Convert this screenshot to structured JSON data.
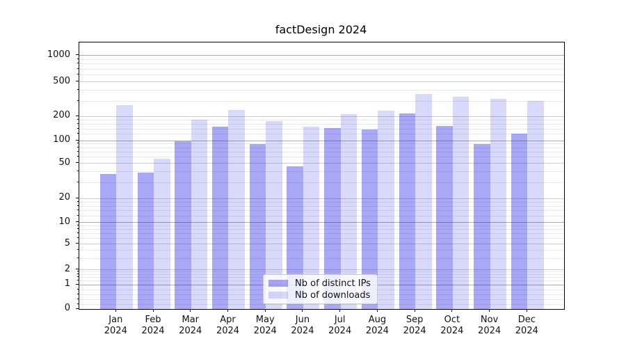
{
  "title": "factDesign 2024",
  "chart_data": {
    "type": "bar",
    "title": "factDesign 2024",
    "x_categories": [
      {
        "month": "Jan",
        "year": "2024"
      },
      {
        "month": "Feb",
        "year": "2024"
      },
      {
        "month": "Mar",
        "year": "2024"
      },
      {
        "month": "Apr",
        "year": "2024"
      },
      {
        "month": "May",
        "year": "2024"
      },
      {
        "month": "Jun",
        "year": "2024"
      },
      {
        "month": "Jul",
        "year": "2024"
      },
      {
        "month": "Aug",
        "year": "2024"
      },
      {
        "month": "Sep",
        "year": "2024"
      },
      {
        "month": "Oct",
        "year": "2024"
      },
      {
        "month": "Nov",
        "year": "2024"
      },
      {
        "month": "Dec",
        "year": "2024"
      }
    ],
    "series": [
      {
        "name": "Nb of distinct IPs",
        "color": "rgba(0,0,230,0.34)",
        "values": [
          38,
          39,
          97,
          149,
          90,
          46,
          142,
          137,
          215,
          152,
          90,
          122
        ]
      },
      {
        "name": "Nb of downloads",
        "color": "rgba(0,0,230,0.15)",
        "values": [
          270,
          58,
          180,
          235,
          175,
          150,
          210,
          232,
          360,
          338,
          316,
          300
        ]
      }
    ],
    "y_axis": {
      "scale": "symlog",
      "ticks": [
        0,
        1,
        2,
        5,
        10,
        20,
        50,
        100,
        200,
        500,
        1000
      ],
      "top_limit": 1400
    },
    "grid": true,
    "legend": {
      "position": "lower center",
      "labels": [
        "Nb of distinct IPs",
        "Nb of downloads"
      ]
    }
  },
  "colors": {
    "decade_grid": "#ababab",
    "labeled_grid": "#cfcfcf",
    "minor_grid": "#e9e9e9",
    "spine": "#000000",
    "text": "#111111",
    "legend_border": "#cccccc"
  }
}
